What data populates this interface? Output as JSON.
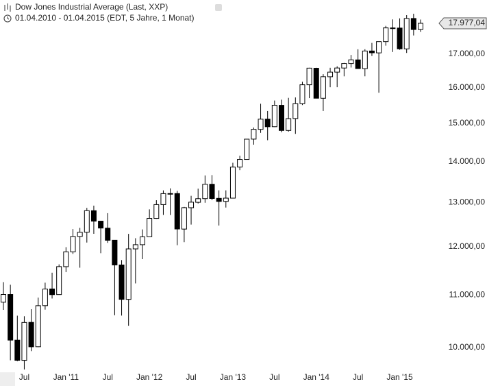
{
  "chart_data": {
    "type": "candlestick",
    "title": "Dow Jones Industrial Average (Last, XXP)",
    "subtitle": "01.04.2010 - 01.04.2015 (EDT, 5 Jahre, 1 Monat)",
    "log_scale": true,
    "grid": false,
    "up_color": "#ffffff",
    "down_color": "#000000",
    "edge_color": "#000000",
    "categories": [
      null,
      null,
      null,
      "Jul",
      null,
      null,
      null,
      null,
      null,
      "Jan '11",
      null,
      null,
      null,
      null,
      null,
      "Jul",
      null,
      null,
      null,
      null,
      null,
      "Jan '12",
      null,
      null,
      null,
      null,
      null,
      "Jul",
      null,
      null,
      null,
      null,
      null,
      "Jan '13",
      null,
      null,
      null,
      null,
      null,
      "Jul",
      null,
      null,
      null,
      null,
      null,
      "Jan '14",
      null,
      null,
      null,
      null,
      null,
      "Jul",
      null,
      null,
      null,
      null,
      null,
      "Jan '15",
      null,
      null,
      null
    ],
    "open": [
      10857,
      11009,
      10136,
      9773,
      10468,
      10016,
      10789,
      11120,
      11007,
      11577,
      11892,
      12226,
      12321,
      12810,
      12570,
      12412,
      12144,
      11613,
      10912,
      11955,
      12046,
      12221,
      12632,
      12952,
      13212,
      13214,
      12391,
      12879,
      13006,
      13092,
      13437,
      13099,
      13027,
      13104,
      13861,
      14054,
      14580,
      14839,
      15116,
      14911,
      15499,
      14810,
      15132,
      15546,
      16086,
      16573,
      15698,
      16321,
      16458,
      16580,
      16716,
      16826,
      16561,
      17099,
      17040,
      17391,
      17827,
      17823,
      17164,
      18134,
      17778
    ],
    "high": [
      11258,
      11205,
      10595,
      10584,
      10720,
      10948,
      11247,
      11451,
      11625,
      11993,
      12391,
      12419,
      12876,
      12928,
      12570,
      12753,
      12144,
      11716,
      12284,
      12188,
      12383,
      12841,
      13055,
      13289,
      13338,
      13279,
      12898,
      13159,
      13331,
      13653,
      13662,
      13290,
      13290,
      13969,
      14149,
      14563,
      14888,
      15543,
      15340,
      15634,
      15659,
      15710,
      15721,
      16174,
      16588,
      16588,
      16398,
      16588,
      16632,
      16735,
      16978,
      17152,
      17153,
      17350,
      17391,
      17894,
      18104,
      18137,
      18245,
      18289,
      18100
    ],
    "low": [
      10706,
      9774,
      9758,
      9614,
      9936,
      10010,
      10711,
      10929,
      11006,
      11463,
      11846,
      11555,
      12093,
      12286,
      11862,
      12086,
      10604,
      10597,
      10404,
      11231,
      11735,
      12221,
      12623,
      12712,
      12710,
      12035,
      12101,
      12492,
      12978,
      12995,
      13055,
      12471,
      12883,
      13104,
      13784,
      14054,
      14434,
      14746,
      14551,
      14902,
      14760,
      14778,
      14719,
      15506,
      15703,
      15699,
      15340,
      16015,
      16016,
      16333,
      16596,
      16563,
      16334,
      16945,
      15855,
      17264,
      17068,
      17136,
      17038,
      17586,
      17700
    ],
    "close": [
      11009,
      10137,
      9774,
      10466,
      10015,
      10788,
      11118,
      11006,
      11578,
      11892,
      12226,
      12320,
      12811,
      12570,
      12414,
      12143,
      11613,
      10913,
      11955,
      12046,
      12218,
      12633,
      12952,
      13212,
      13214,
      12393,
      12880,
      13009,
      13091,
      13437,
      13096,
      13026,
      13104,
      13861,
      14054,
      14579,
      14840,
      15116,
      14910,
      15500,
      14810,
      15130,
      15546,
      16086,
      16577,
      15699,
      16322,
      16458,
      16581,
      16717,
      16827,
      16563,
      17098,
      17043,
      17391,
      17828,
      17823,
      17165,
      18133,
      17776,
      17977.04
    ],
    "ylim": [
      9600,
      18750
    ],
    "yticks": [
      {
        "value": 10000,
        "label": "10.000,00"
      },
      {
        "value": 11000,
        "label": "11.000,00"
      },
      {
        "value": 12000,
        "label": "12.000,00"
      },
      {
        "value": 13000,
        "label": "13.000,00"
      },
      {
        "value": 14000,
        "label": "14.000,00"
      },
      {
        "value": 15000,
        "label": "15.000,00"
      },
      {
        "value": 16000,
        "label": "16.000,00"
      },
      {
        "value": 17000,
        "label": "17.000,00"
      }
    ],
    "last_price": {
      "value": 17977.04,
      "label": "17.977,04"
    }
  }
}
